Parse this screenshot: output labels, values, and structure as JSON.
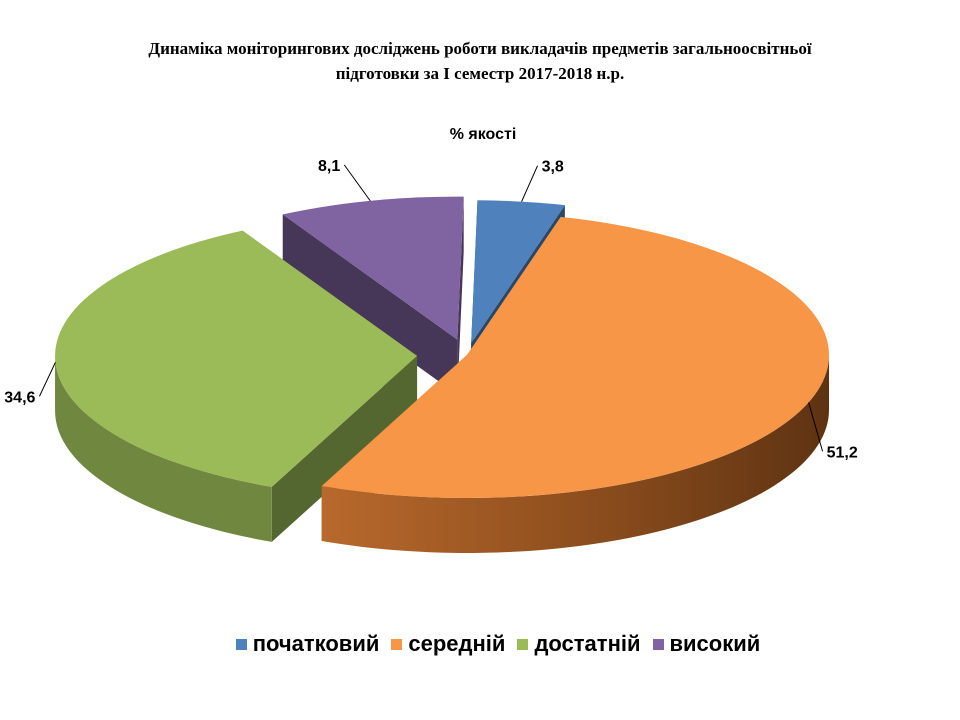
{
  "header": {
    "title_line1": "Динаміка моніторингових досліджень роботи викладачів предметів загальноосвітньої",
    "title_line2": "підготовки за І семестр  2017-2018 н.р."
  },
  "chart_data": {
    "type": "pie",
    "title": "% якості",
    "categories": [
      "початковий",
      "середній",
      "достатній",
      "високий"
    ],
    "values": [
      3.8,
      51.2,
      34.6,
      8.1
    ],
    "value_labels": [
      "3,8",
      "51,2",
      "34,6",
      "8,1"
    ],
    "colors": [
      "#4F81BD",
      "#F79646",
      "#9BBB59",
      "#8064A2"
    ],
    "legend_position": "bottom",
    "style": "3d-exploded"
  }
}
